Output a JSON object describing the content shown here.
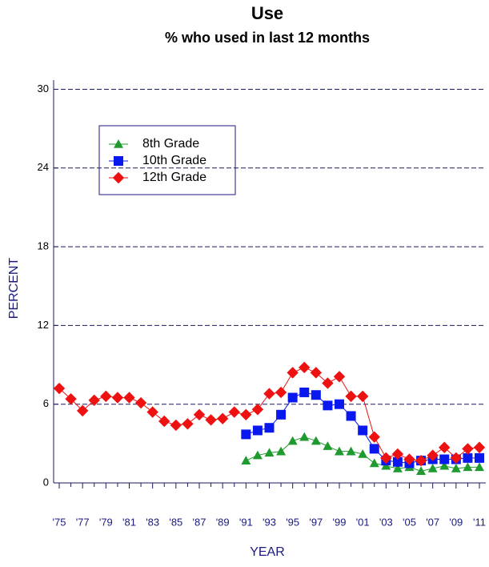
{
  "chart_data": {
    "type": "line",
    "title": "Use",
    "subtitle": "% who used in last 12 months",
    "xlabel": "YEAR",
    "ylabel": "PERCENT",
    "categories": [
      "'75",
      null,
      "'77",
      null,
      "'79",
      null,
      "'81",
      null,
      "'83",
      null,
      "'85",
      null,
      "'87",
      null,
      "'89",
      null,
      "'91",
      null,
      "'93",
      null,
      "'95",
      null,
      "'97",
      null,
      "'99",
      null,
      "'01",
      null,
      "'03",
      null,
      "'05",
      null,
      "'07",
      null,
      "'09",
      null,
      "'11"
    ],
    "series": [
      {
        "name": "8th Grade",
        "color": "#1f9a2f",
        "marker": "triangle",
        "values": [
          null,
          null,
          null,
          null,
          null,
          null,
          null,
          null,
          null,
          null,
          null,
          null,
          null,
          null,
          null,
          null,
          1.7,
          2.1,
          2.3,
          2.4,
          3.2,
          3.5,
          3.2,
          2.8,
          2.4,
          2.4,
          2.2,
          1.5,
          1.3,
          1.1,
          1.2,
          0.9,
          1.1,
          1.3,
          1.1,
          1.2,
          1.2
        ]
      },
      {
        "name": "10th Grade",
        "color": "#0a18f0",
        "marker": "square",
        "values": [
          null,
          null,
          null,
          null,
          null,
          null,
          null,
          null,
          null,
          null,
          null,
          null,
          null,
          null,
          null,
          null,
          3.7,
          4.0,
          4.2,
          5.2,
          6.5,
          6.9,
          6.7,
          5.9,
          6.0,
          5.1,
          4.0,
          2.6,
          1.7,
          1.6,
          1.5,
          1.7,
          1.8,
          1.8,
          1.8,
          1.9,
          1.9
        ]
      },
      {
        "name": "12th Grade",
        "color": "#ee1111",
        "marker": "diamond",
        "values": [
          7.2,
          6.4,
          5.5,
          6.3,
          6.6,
          6.5,
          6.5,
          6.1,
          5.4,
          4.7,
          4.4,
          4.5,
          5.2,
          4.8,
          4.9,
          5.4,
          5.2,
          5.6,
          6.8,
          6.9,
          8.4,
          8.8,
          8.4,
          7.6,
          8.1,
          6.6,
          6.6,
          3.5,
          1.9,
          2.2,
          1.8,
          1.7,
          2.1,
          2.7,
          1.9,
          2.6,
          2.7
        ]
      }
    ],
    "ylim": [
      0,
      30.7
    ],
    "yticks": [
      0,
      6,
      12,
      18,
      24,
      30
    ],
    "grid": true,
    "legend": "upper left"
  }
}
